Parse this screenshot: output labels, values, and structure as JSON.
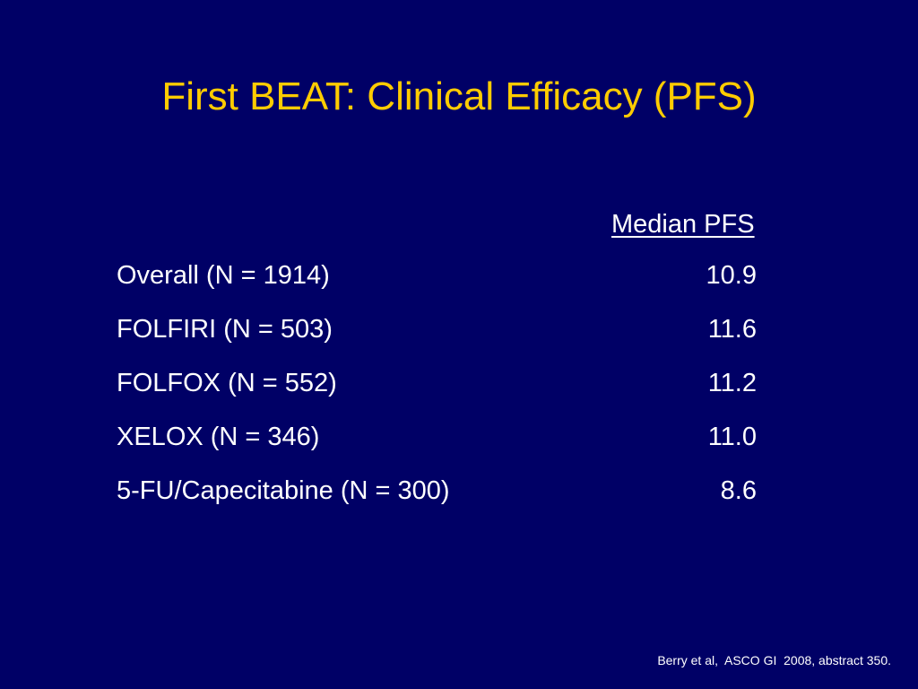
{
  "slide": {
    "title": "First BEAT: Clinical Efficacy (PFS)",
    "column_header": "Median PFS",
    "rows": [
      {
        "label": "Overall (N = 1914)",
        "value": "10.9"
      },
      {
        "label": "FOLFIRI (N = 503)",
        "value": "11.6"
      },
      {
        "label": "FOLFOX (N = 552)",
        "value": "11.2"
      },
      {
        "label": "XELOX (N = 346)",
        "value": "11.0"
      },
      {
        "label": "5-FU/Capecitabine (N = 300)",
        "value": "8.6"
      }
    ],
    "citation": "Berry et al,  ASCO GI  2008, abstract 350."
  },
  "colors": {
    "background": "#000066",
    "title": "#ffcc00",
    "text": "#ffffff"
  }
}
